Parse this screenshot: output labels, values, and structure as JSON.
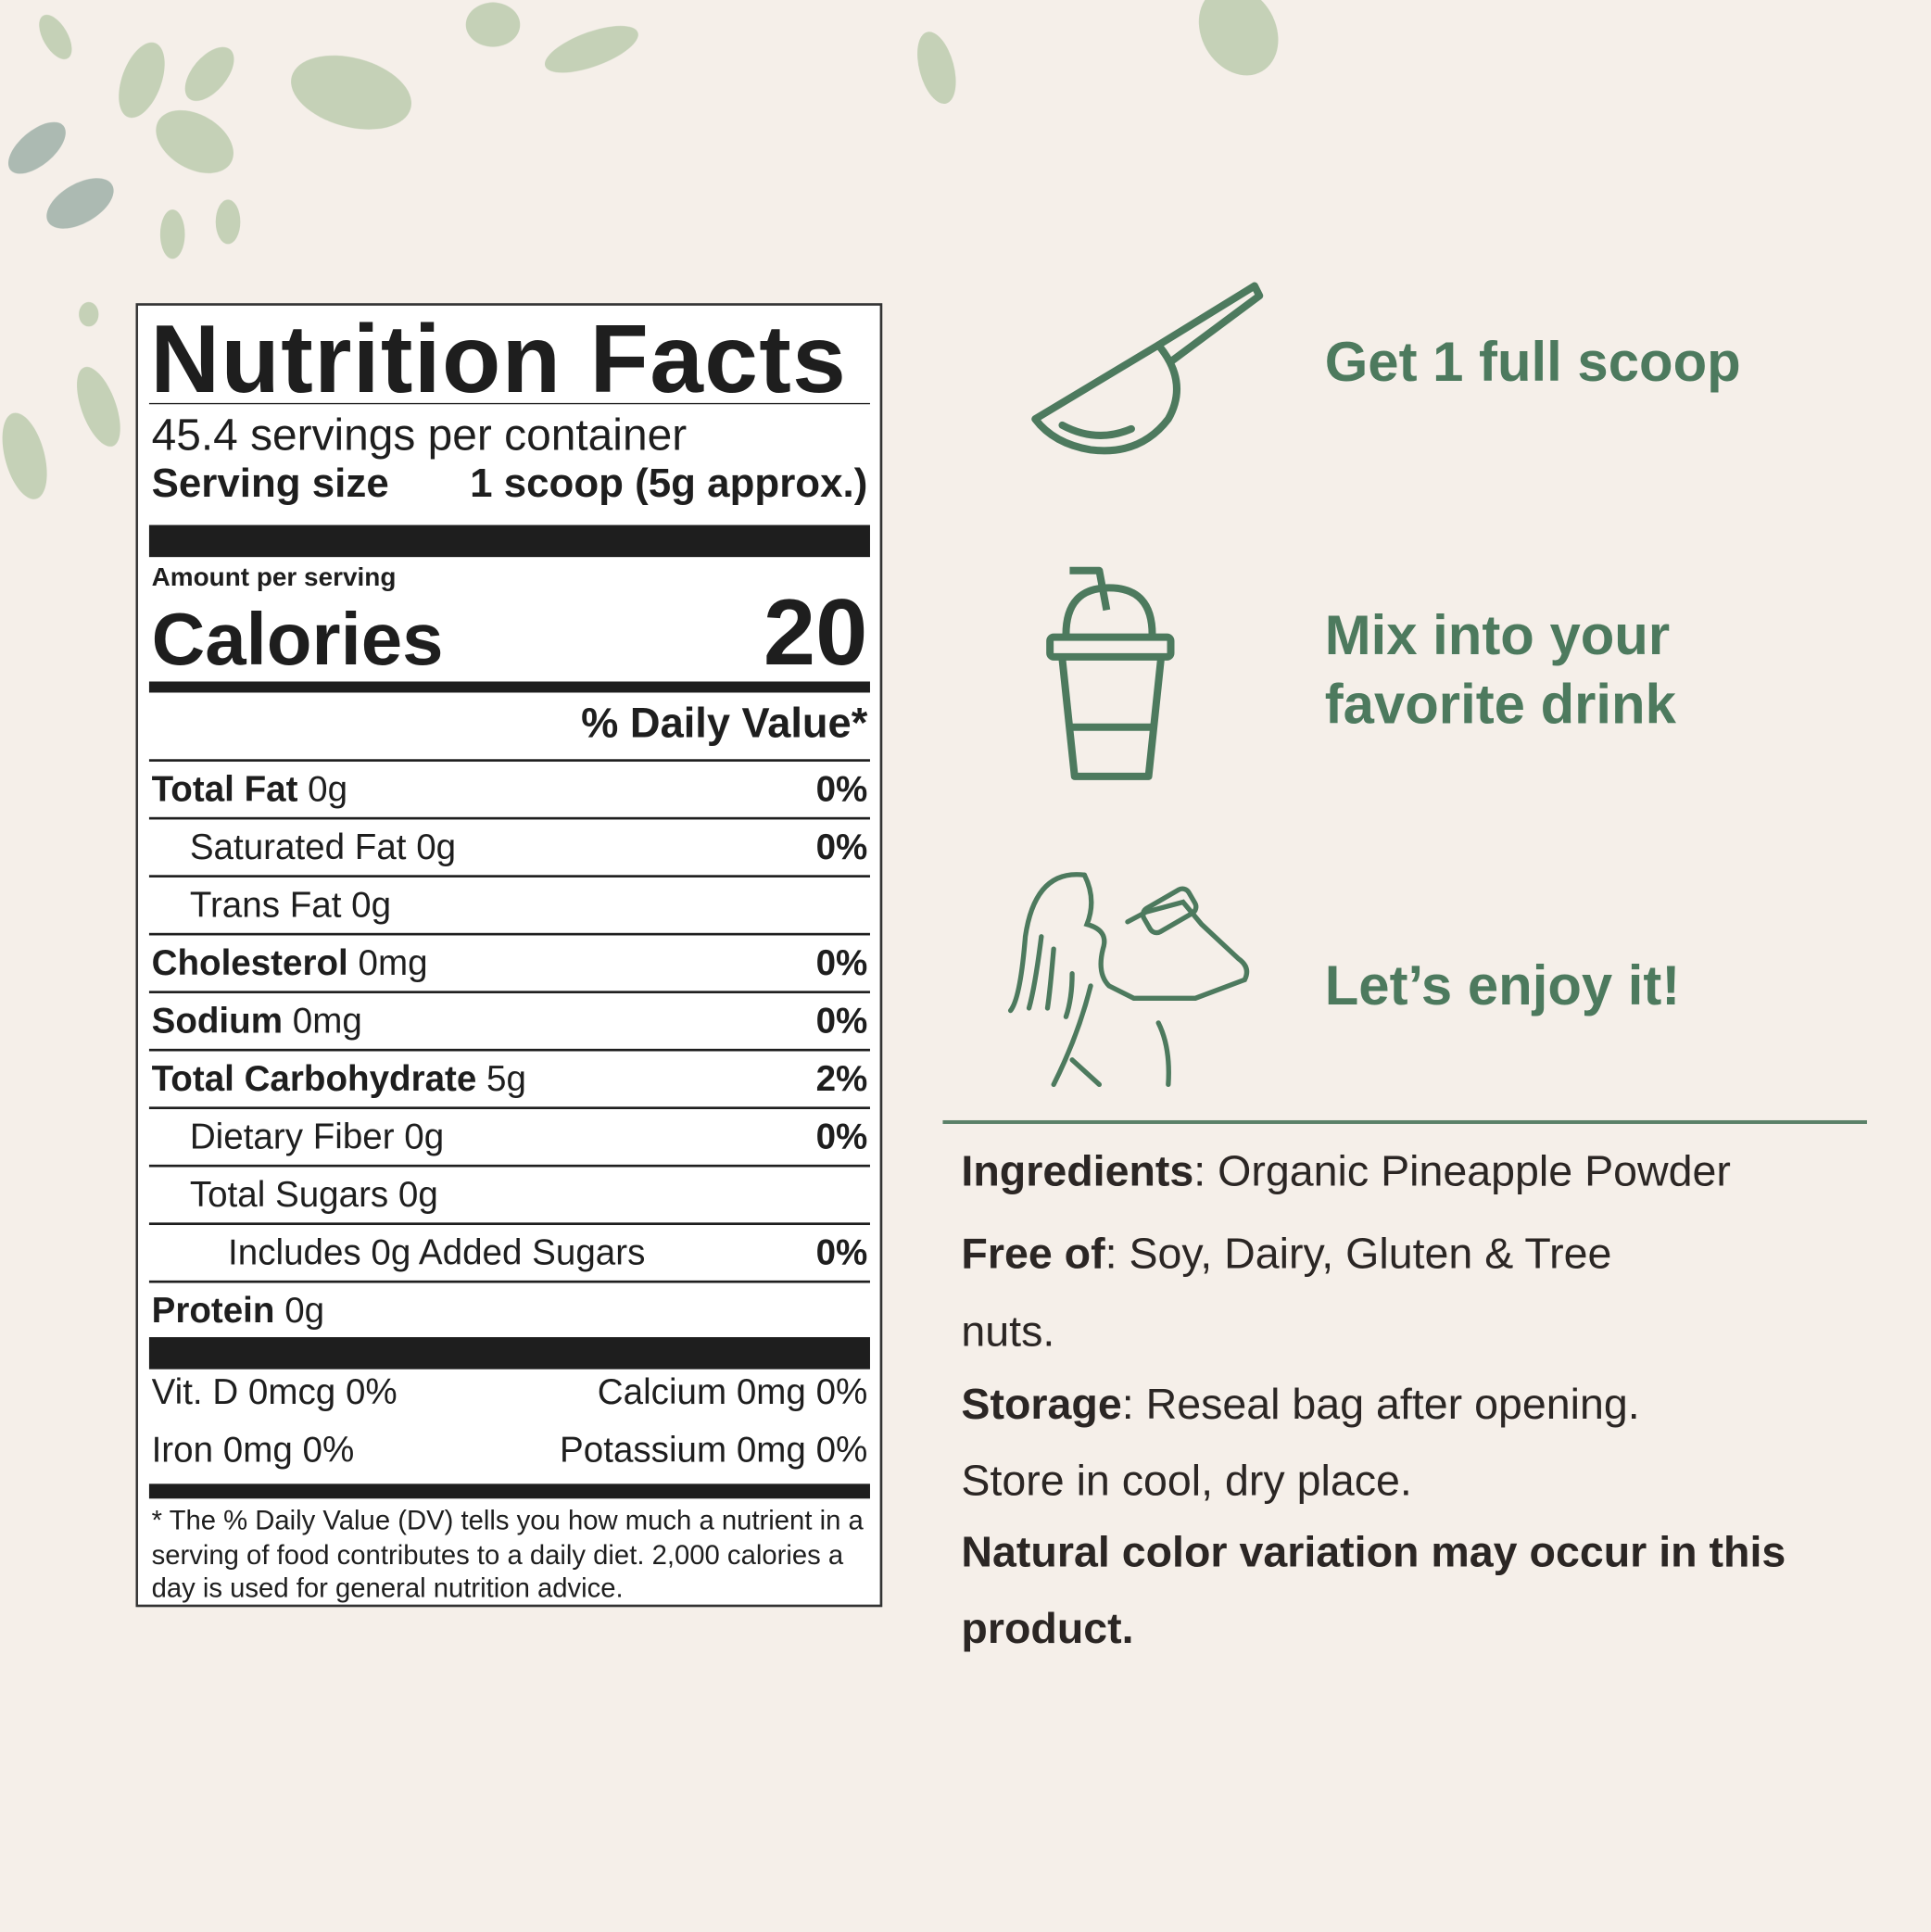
{
  "label": {
    "title": "Nutrition Facts",
    "servings": "45.4 servings per container",
    "serving_size_label": "Serving size",
    "serving_size_value": "1 scoop (5g approx.)",
    "amount_per_serving": "Amount per serving",
    "calories_label": "Calories",
    "calories_value": "20",
    "dv_header": "% Daily Value*",
    "rows": [
      {
        "name": "Total Fat",
        "amount": "0g",
        "dv": "0%",
        "bold": true,
        "indent": 0
      },
      {
        "name": "Saturated Fat 0g",
        "amount": "",
        "dv": "0%",
        "bold": false,
        "indent": 1
      },
      {
        "name": "Trans Fat 0g",
        "amount": "",
        "dv": "",
        "bold": false,
        "indent": 1
      },
      {
        "name": "Cholesterol",
        "amount": "0mg",
        "dv": "0%",
        "bold": true,
        "indent": 0
      },
      {
        "name": "Sodium",
        "amount": "0mg",
        "dv": "0%",
        "bold": true,
        "indent": 0
      },
      {
        "name": "Total Carbohydrate",
        "amount": "5g",
        "dv": "2%",
        "bold": true,
        "indent": 0
      },
      {
        "name": "Dietary Fiber 0g",
        "amount": "",
        "dv": "0%",
        "bold": false,
        "indent": 1
      },
      {
        "name": "Total Sugars 0g",
        "amount": "",
        "dv": "",
        "bold": false,
        "indent": 1
      },
      {
        "name": "Includes 0g Added Sugars",
        "amount": "",
        "dv": "0%",
        "bold": false,
        "indent": 2
      },
      {
        "name": "Protein",
        "amount": "0g",
        "dv": "",
        "bold": true,
        "indent": 0
      }
    ],
    "vitamins": {
      "vit_d": "Vit. D 0mcg 0%",
      "calcium": "Calcium 0mg 0%",
      "iron": "Iron 0mg 0%",
      "potassium": "Potassium 0mg 0%"
    },
    "footnote": "* The % Daily Value (DV) tells you how much a nutrient in a serving of food contributes to a daily diet. 2,000 calories a day is used for general nutrition advice."
  },
  "steps": [
    {
      "icon": "scoop-icon",
      "text": "Get 1 full scoop"
    },
    {
      "icon": "drink-cup-icon",
      "text": "Mix into your favorite drink"
    },
    {
      "icon": "woman-drinking-icon",
      "text": "Let’s enjoy it!"
    }
  ],
  "info": {
    "ingredients_label": "Ingredients",
    "ingredients_value": ": Organic Pineapple Powder",
    "free_label": "Free of",
    "free_value_1": ": Soy, Dairy, Gluten & Tree",
    "free_value_2": "nuts.",
    "storage_label": "Storage",
    "storage_value_1": ": Reseal bag after opening.",
    "storage_value_2": "Store in cool, dry place.",
    "note_1": "Natural color variation may occur in this",
    "note_2": "product."
  },
  "colors": {
    "accent": "#4d7a5e",
    "background": "#f5efe9",
    "text": "#2b2624"
  }
}
